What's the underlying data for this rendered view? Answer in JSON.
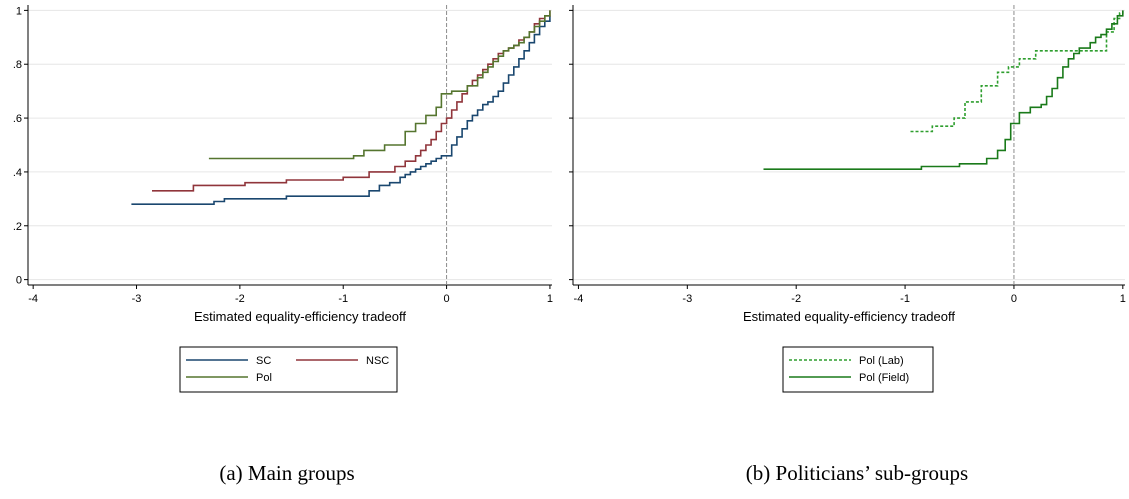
{
  "chart_data": [
    {
      "type": "line",
      "title": "",
      "caption": "(a) Main groups",
      "xlabel": "Estimated equality-efficiency tradeoff",
      "ylabel": "",
      "xlim": [
        -4.05,
        1.02
      ],
      "ylim": [
        -0.02,
        1.02
      ],
      "xticks": [
        -4,
        -3,
        -2,
        -1,
        0,
        1
      ],
      "xtick_labels": [
        "-4",
        "-3",
        "-2",
        "-1",
        "0",
        "1"
      ],
      "yticks": [
        0,
        0.2,
        0.4,
        0.6,
        0.8,
        1
      ],
      "ytick_labels": [
        "0",
        ".2",
        ".4",
        ".6",
        ".8",
        "1"
      ],
      "grid": true,
      "vline_x": 0,
      "legend_position": "bottom",
      "legend_columns": 2,
      "series": [
        {
          "name": "SC",
          "color": "#1a476f",
          "dash": "solid",
          "x": [
            -3.05,
            -2.25,
            -2.15,
            -1.55,
            -1.45,
            -0.75,
            -0.65,
            -0.55,
            -0.45,
            -0.4,
            -0.35,
            -0.3,
            -0.25,
            -0.2,
            -0.15,
            -0.1,
            -0.05,
            0.0,
            0.05,
            0.1,
            0.15,
            0.2,
            0.25,
            0.3,
            0.35,
            0.4,
            0.45,
            0.5,
            0.55,
            0.6,
            0.65,
            0.7,
            0.75,
            0.8,
            0.85,
            0.9,
            0.95,
            1.0
          ],
          "y": [
            0.28,
            0.29,
            0.3,
            0.31,
            0.31,
            0.33,
            0.35,
            0.36,
            0.38,
            0.39,
            0.4,
            0.41,
            0.42,
            0.43,
            0.44,
            0.45,
            0.46,
            0.46,
            0.5,
            0.53,
            0.56,
            0.59,
            0.61,
            0.63,
            0.65,
            0.66,
            0.68,
            0.7,
            0.73,
            0.76,
            0.79,
            0.82,
            0.85,
            0.88,
            0.91,
            0.94,
            0.96,
            0.98
          ]
        },
        {
          "name": "NSC",
          "color": "#90353b",
          "dash": "solid",
          "x": [
            -2.85,
            -2.45,
            -1.95,
            -1.55,
            -1.0,
            -0.75,
            -0.5,
            -0.4,
            -0.3,
            -0.25,
            -0.2,
            -0.15,
            -0.1,
            -0.05,
            0.0,
            0.05,
            0.1,
            0.15,
            0.2,
            0.25,
            0.3,
            0.35,
            0.4,
            0.45,
            0.5,
            0.55,
            0.6,
            0.65,
            0.7,
            0.75,
            0.8,
            0.85,
            0.9,
            0.95,
            1.0
          ],
          "y": [
            0.33,
            0.35,
            0.36,
            0.37,
            0.38,
            0.4,
            0.42,
            0.44,
            0.46,
            0.48,
            0.5,
            0.52,
            0.55,
            0.58,
            0.6,
            0.63,
            0.66,
            0.69,
            0.72,
            0.74,
            0.76,
            0.78,
            0.8,
            0.82,
            0.84,
            0.85,
            0.86,
            0.87,
            0.89,
            0.9,
            0.92,
            0.95,
            0.97,
            0.98,
            1.0
          ]
        },
        {
          "name": "Pol",
          "color": "#55752f",
          "dash": "solid",
          "x": [
            -2.3,
            -0.9,
            -0.8,
            -0.6,
            -0.4,
            -0.3,
            -0.2,
            -0.1,
            -0.05,
            0.05,
            0.2,
            0.3,
            0.35,
            0.4,
            0.45,
            0.5,
            0.55,
            0.6,
            0.65,
            0.7,
            0.75,
            0.8,
            0.85,
            0.9,
            0.95,
            1.0
          ],
          "y": [
            0.45,
            0.46,
            0.48,
            0.5,
            0.55,
            0.58,
            0.61,
            0.64,
            0.69,
            0.7,
            0.72,
            0.75,
            0.77,
            0.79,
            0.81,
            0.83,
            0.85,
            0.86,
            0.87,
            0.88,
            0.9,
            0.92,
            0.94,
            0.96,
            0.98,
            1.0
          ]
        }
      ]
    },
    {
      "type": "line",
      "title": "",
      "caption": "(b) Politicians’ sub-groups",
      "xlabel": "Estimated equality-efficiency tradeoff",
      "ylabel": "",
      "xlim": [
        -4.05,
        1.02
      ],
      "ylim": [
        -0.02,
        1.02
      ],
      "xticks": [
        -4,
        -3,
        -2,
        -1,
        0,
        1
      ],
      "xtick_labels": [
        "-4",
        "-3",
        "-2",
        "-1",
        "0",
        "1"
      ],
      "yticks": [
        0,
        0.2,
        0.4,
        0.6,
        0.8,
        1
      ],
      "ytick_labels": [
        "",
        "",
        "",
        "",
        "",
        ""
      ],
      "grid": true,
      "vline_x": 0,
      "legend_position": "bottom",
      "legend_columns": 1,
      "series": [
        {
          "name": "Pol (Lab)",
          "color": "#2e9e2e",
          "dash": "dashed",
          "x": [
            -0.95,
            -0.75,
            -0.55,
            -0.45,
            -0.3,
            -0.15,
            -0.05,
            0.05,
            0.2,
            0.35,
            0.5,
            0.85,
            0.92,
            0.97,
            1.0
          ],
          "y": [
            0.55,
            0.57,
            0.6,
            0.66,
            0.72,
            0.77,
            0.79,
            0.82,
            0.85,
            0.85,
            0.85,
            0.92,
            0.97,
            0.99,
            1.0
          ]
        },
        {
          "name": "Pol (Field)",
          "color": "#1a7a1a",
          "dash": "solid",
          "x": [
            -2.3,
            -0.85,
            -0.5,
            -0.25,
            -0.15,
            -0.08,
            -0.03,
            0.05,
            0.15,
            0.25,
            0.3,
            0.35,
            0.4,
            0.45,
            0.5,
            0.55,
            0.6,
            0.7,
            0.75,
            0.8,
            0.85,
            0.9,
            0.95,
            1.0
          ],
          "y": [
            0.41,
            0.42,
            0.43,
            0.45,
            0.48,
            0.52,
            0.58,
            0.62,
            0.64,
            0.65,
            0.68,
            0.71,
            0.75,
            0.79,
            0.82,
            0.84,
            0.86,
            0.88,
            0.9,
            0.91,
            0.93,
            0.95,
            0.98,
            1.0
          ]
        }
      ]
    }
  ]
}
